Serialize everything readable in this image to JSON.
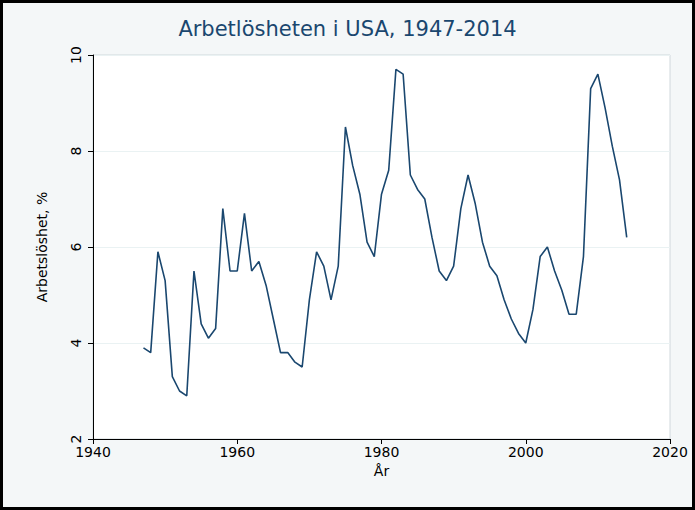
{
  "chart_data": {
    "type": "line",
    "title": "Arbetlösheten i USA, 1947-2014",
    "x_label": "År",
    "y_label": "Arbetslöshet, %",
    "color": "#1a476f",
    "grid": true,
    "x": [
      1947,
      1948,
      1949,
      1950,
      1951,
      1952,
      1953,
      1954,
      1955,
      1956,
      1957,
      1958,
      1959,
      1960,
      1961,
      1962,
      1963,
      1964,
      1965,
      1966,
      1967,
      1968,
      1969,
      1970,
      1971,
      1972,
      1973,
      1974,
      1975,
      1976,
      1977,
      1978,
      1979,
      1980,
      1981,
      1982,
      1983,
      1984,
      1985,
      1986,
      1987,
      1988,
      1989,
      1990,
      1991,
      1992,
      1993,
      1994,
      1995,
      1996,
      1997,
      1998,
      1999,
      2000,
      2001,
      2002,
      2003,
      2004,
      2005,
      2006,
      2007,
      2008,
      2009,
      2010,
      2011,
      2012,
      2013,
      2014
    ],
    "values": [
      3.9,
      3.8,
      5.9,
      5.3,
      3.3,
      3.0,
      2.9,
      5.5,
      4.4,
      4.1,
      4.3,
      6.8,
      5.5,
      5.5,
      6.7,
      5.5,
      5.7,
      5.2,
      4.5,
      3.8,
      3.8,
      3.6,
      3.5,
      4.9,
      5.9,
      5.6,
      4.9,
      5.6,
      8.5,
      7.7,
      7.1,
      6.1,
      5.8,
      7.1,
      7.6,
      9.7,
      9.6,
      7.5,
      7.2,
      7.0,
      6.2,
      5.5,
      5.3,
      5.6,
      6.8,
      7.5,
      6.9,
      6.1,
      5.6,
      5.4,
      4.9,
      4.5,
      4.2,
      4.0,
      4.7,
      5.8,
      6.0,
      5.5,
      5.1,
      4.6,
      4.6,
      5.8,
      9.3,
      9.6,
      8.9,
      8.1,
      7.4,
      6.2
    ],
    "xlim": [
      1940,
      2020
    ],
    "xticks": [
      1940,
      1960,
      1980,
      2000,
      2020
    ],
    "ylim": [
      2,
      10
    ],
    "yticks": [
      2,
      4,
      6,
      8,
      10
    ]
  }
}
